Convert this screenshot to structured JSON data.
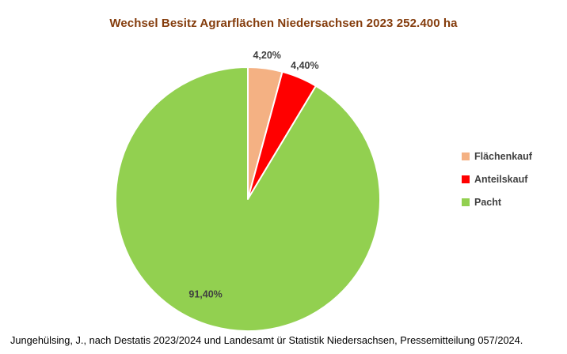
{
  "title": "Wechsel Besitz Agrarflächen Niedersachsen 2023 252.400 ha",
  "source_note": "Jungehülsing, J., nach Destatis 2023/2024 und Landesamt ür Statistik Niedersachsen, Pressemitteilung 057/2024.",
  "colors": {
    "title_text": "#843C0C",
    "label_text": "#404040",
    "slice_border": "#FFFFFF",
    "background": "#FFFFFF"
  },
  "chart_data": {
    "type": "pie",
    "title": "Wechsel Besitz Agrarflächen Niedersachsen 2023 252.400 ha",
    "legend_position": "right",
    "direction": "clockwise",
    "start_angle_deg": 0,
    "slices": [
      {
        "label": "Flächenkauf",
        "value": 4.2,
        "display": "4,20%",
        "color": "#F4B183",
        "label_placement": "outside"
      },
      {
        "label": "Anteilskauf",
        "value": 4.4,
        "display": "4,40%",
        "color": "#FF0000",
        "label_placement": "outside"
      },
      {
        "label": "Pacht",
        "value": 91.4,
        "display": "91,40%",
        "color": "#92D050",
        "label_placement": "inside"
      }
    ]
  }
}
